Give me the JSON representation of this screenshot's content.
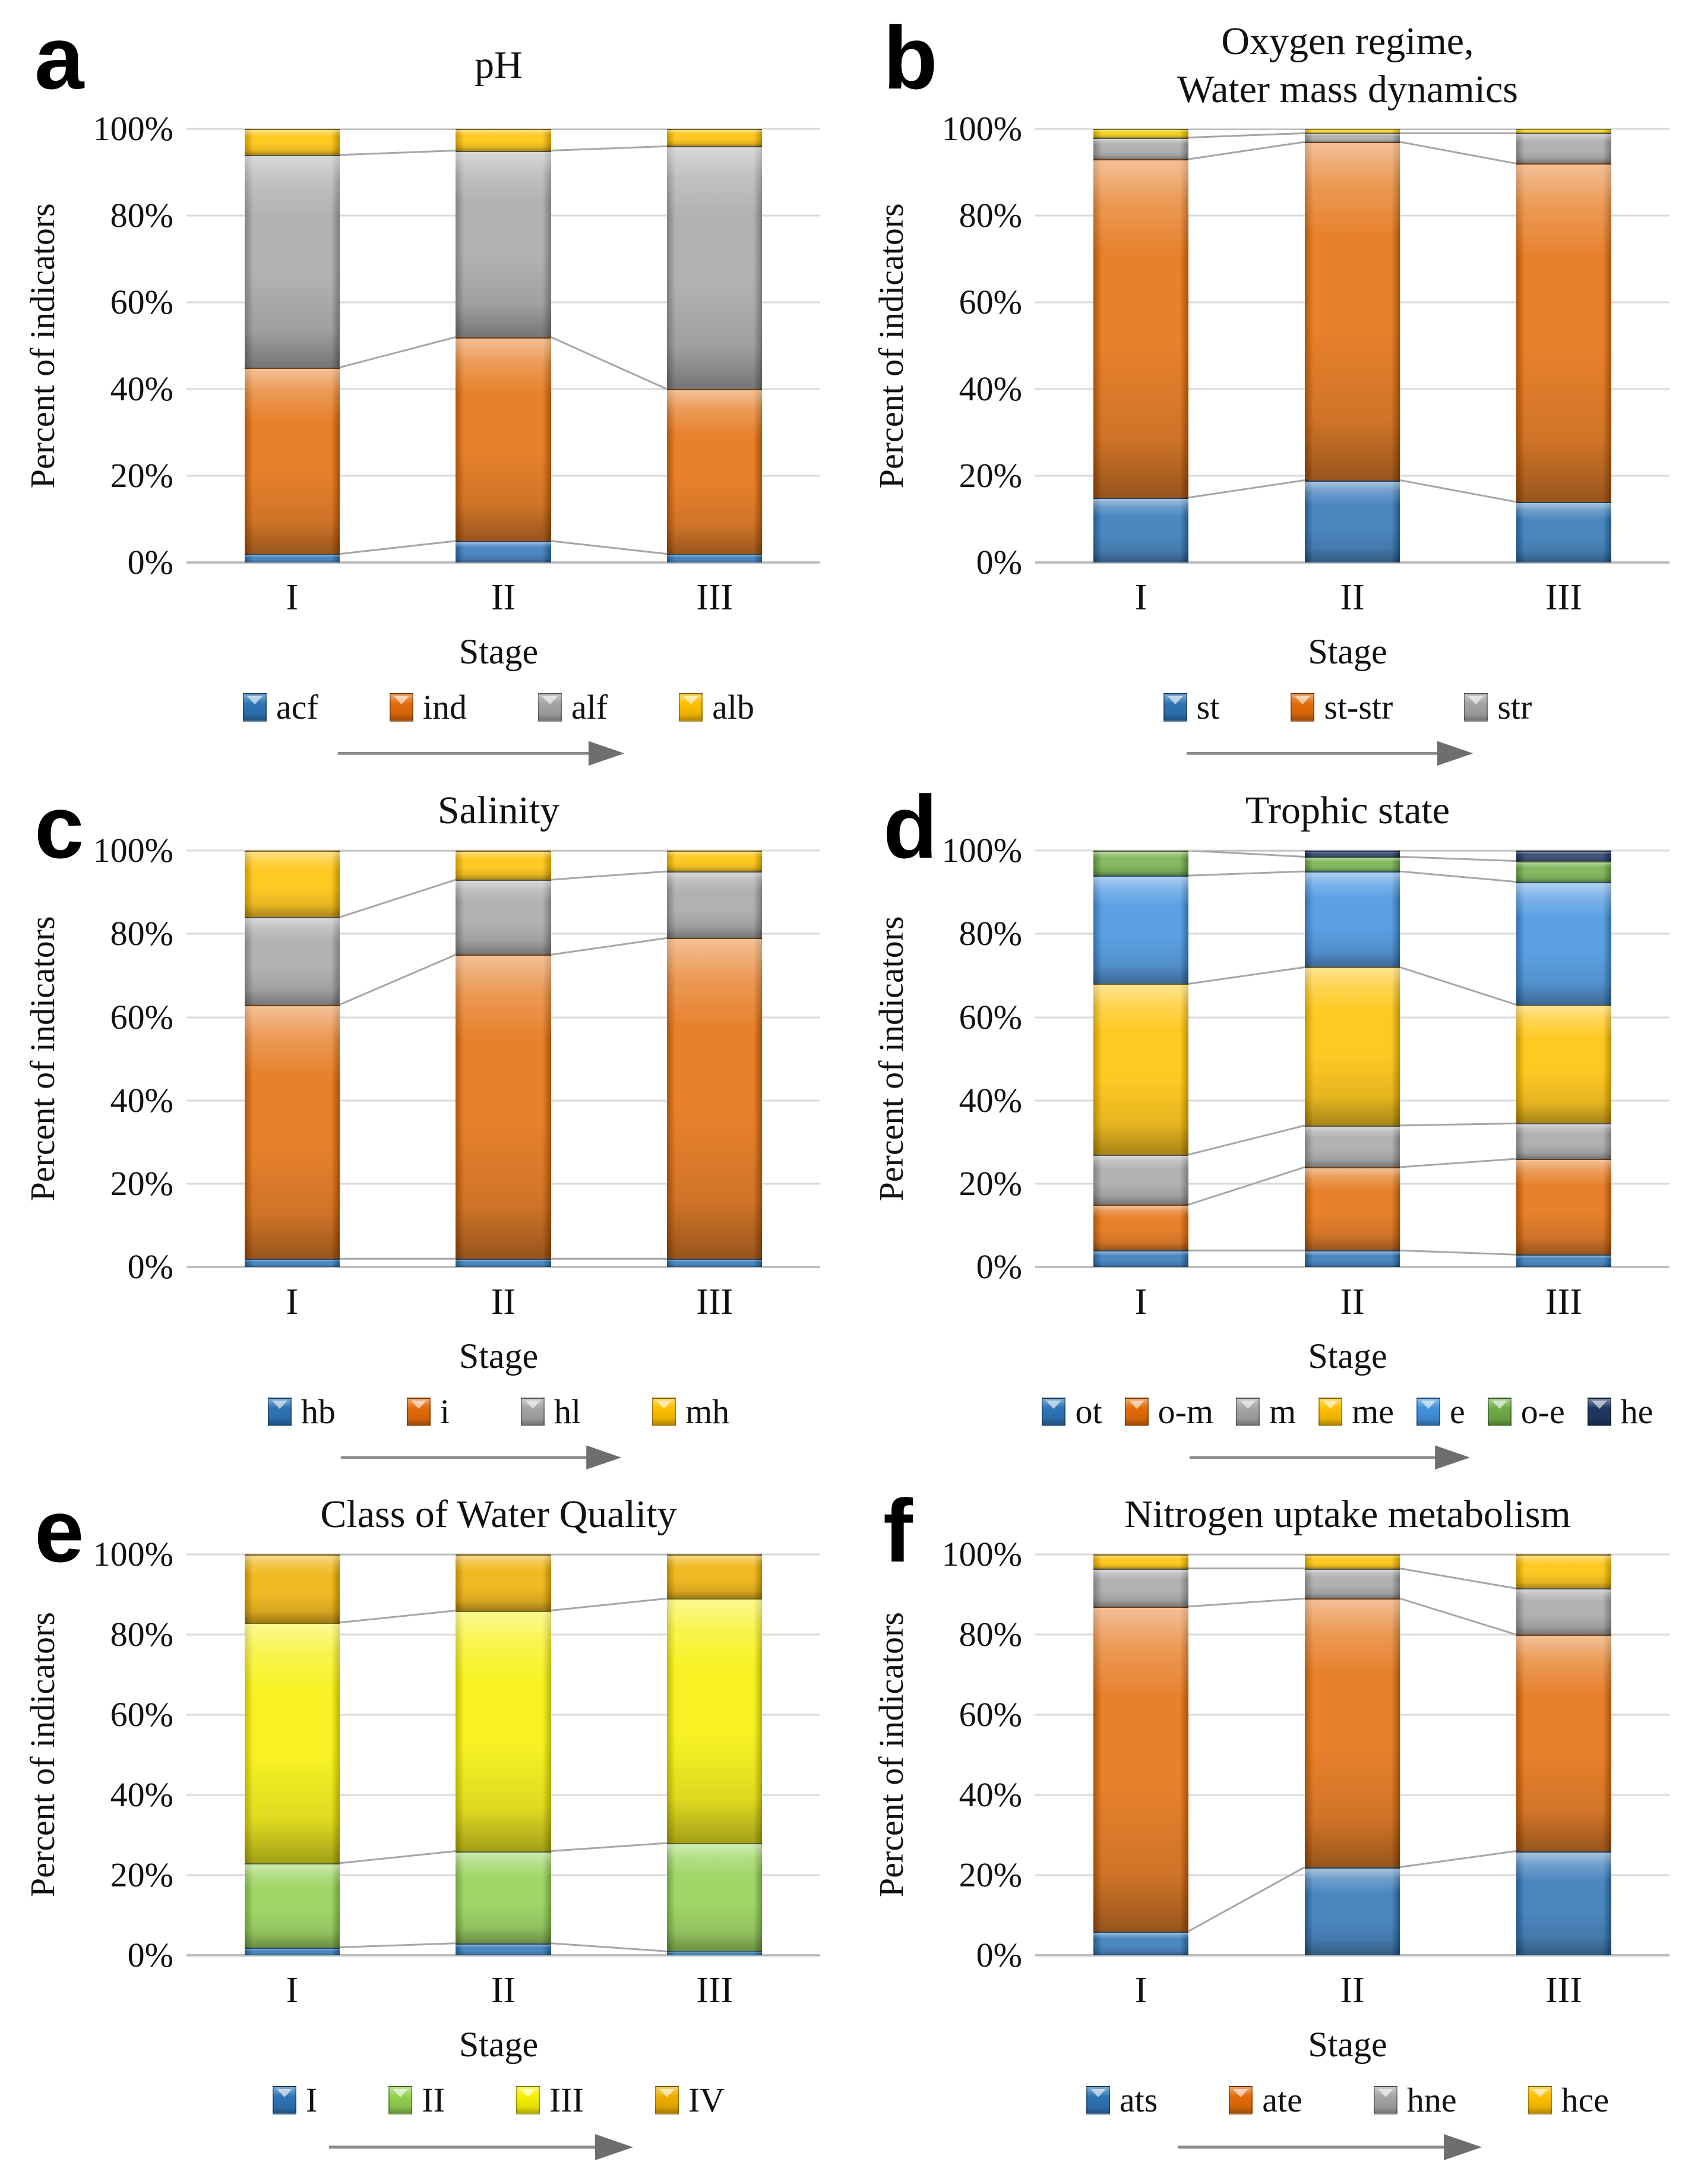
{
  "chart_data": [
    {
      "type": "bar",
      "stacked": true,
      "panel_letter": "a",
      "title": "pH",
      "title_lines": [
        "pH"
      ],
      "xlabel": "Stage",
      "ylabel": "Percent of indicators",
      "categories": [
        "I",
        "II",
        "III"
      ],
      "y_tick_labels": [
        "0%",
        "20%",
        "40%",
        "60%",
        "80%",
        "100%"
      ],
      "ylim": [
        0,
        100
      ],
      "grid": true,
      "legend_position": "bottom",
      "series": [
        {
          "name": "acf",
          "color": "#2E75B6",
          "values": [
            2,
            5,
            2
          ]
        },
        {
          "name": "ind",
          "color": "#E36C09",
          "values": [
            43,
            47,
            38
          ]
        },
        {
          "name": "alf",
          "color": "#A5A5A5",
          "values": [
            49,
            43,
            56
          ]
        },
        {
          "name": "alb",
          "color": "#FFC000",
          "values": [
            6,
            5,
            4
          ]
        }
      ]
    },
    {
      "type": "bar",
      "stacked": true,
      "panel_letter": "b",
      "title": "Oxygen regime, Water mass dynamics",
      "title_lines": [
        "Oxygen regime,",
        "Water mass dynamics"
      ],
      "xlabel": "Stage",
      "ylabel": "Percent of indicators",
      "categories": [
        "I",
        "II",
        "III"
      ],
      "y_tick_labels": [
        "0%",
        "20%",
        "40%",
        "60%",
        "80%",
        "100%"
      ],
      "ylim": [
        0,
        100
      ],
      "grid": true,
      "legend_position": "bottom",
      "series": [
        {
          "name": "st",
          "color": "#2E75B6",
          "values": [
            15,
            19,
            14
          ]
        },
        {
          "name": "st-str",
          "color": "#E36C09",
          "values": [
            78,
            78,
            78
          ]
        },
        {
          "name": "str",
          "color": "#A5A5A5",
          "values": [
            5,
            2,
            7
          ]
        },
        {
          "name": "",
          "color": "#EDC900",
          "values": [
            2,
            1,
            1
          ],
          "in_legend": false
        }
      ]
    },
    {
      "type": "bar",
      "stacked": true,
      "panel_letter": "c",
      "title": "Salinity",
      "title_lines": [
        "Salinity"
      ],
      "xlabel": "Stage",
      "ylabel": "Percent of indicators",
      "categories": [
        "I",
        "II",
        "III"
      ],
      "y_tick_labels": [
        "0%",
        "20%",
        "40%",
        "60%",
        "80%",
        "100%"
      ],
      "ylim": [
        0,
        100
      ],
      "grid": true,
      "legend_position": "bottom",
      "series": [
        {
          "name": "hb",
          "color": "#2E75B6",
          "values": [
            2,
            2,
            2
          ]
        },
        {
          "name": "i",
          "color": "#E36C09",
          "values": [
            61,
            73,
            77
          ]
        },
        {
          "name": "hl",
          "color": "#A5A5A5",
          "values": [
            21,
            18,
            16
          ]
        },
        {
          "name": "mh",
          "color": "#FFC000",
          "values": [
            16,
            7,
            5
          ]
        }
      ]
    },
    {
      "type": "bar",
      "stacked": true,
      "panel_letter": "d",
      "title": "Trophic state",
      "title_lines": [
        "Trophic state"
      ],
      "xlabel": "Stage",
      "ylabel": "Percent of indicators",
      "categories": [
        "I",
        "II",
        "III"
      ],
      "y_tick_labels": [
        "0%",
        "20%",
        "40%",
        "60%",
        "80%",
        "100%"
      ],
      "ylim": [
        0,
        100
      ],
      "grid": true,
      "legend_position": "bottom",
      "series": [
        {
          "name": "ot",
          "color": "#2E75B6",
          "values": [
            4,
            4,
            3
          ]
        },
        {
          "name": "o-m",
          "color": "#E36C09",
          "values": [
            11,
            20,
            23
          ]
        },
        {
          "name": "m",
          "color": "#A5A5A5",
          "values": [
            12,
            10,
            8.5
          ]
        },
        {
          "name": "me",
          "color": "#FFC000",
          "values": [
            41,
            38,
            28.5
          ]
        },
        {
          "name": "e",
          "color": "#4191DF",
          "values": [
            26,
            23,
            29.5
          ]
        },
        {
          "name": "o-e",
          "color": "#70AD47",
          "values": [
            6,
            3.5,
            5
          ]
        },
        {
          "name": "he",
          "color": "#1F3864",
          "values": [
            0,
            1.5,
            2.5
          ]
        }
      ]
    },
    {
      "type": "bar",
      "stacked": true,
      "panel_letter": "e",
      "title": "Class of Water Quality",
      "title_lines": [
        "Class of Water Quality"
      ],
      "xlabel": "Stage",
      "ylabel": "Percent of indicators",
      "categories": [
        "I",
        "II",
        "III"
      ],
      "y_tick_labels": [
        "0%",
        "20%",
        "40%",
        "60%",
        "80%",
        "100%"
      ],
      "ylim": [
        0,
        100
      ],
      "grid": true,
      "legend_position": "bottom",
      "series": [
        {
          "name": "I",
          "color": "#2E75B6",
          "values": [
            2,
            3,
            1
          ]
        },
        {
          "name": "II",
          "color": "#92D050",
          "values": [
            21,
            23,
            27
          ]
        },
        {
          "name": "III",
          "color": "#F7F000",
          "values": [
            60,
            60,
            61
          ]
        },
        {
          "name": "IV",
          "color": "#EFAF00",
          "values": [
            17,
            14,
            11
          ]
        }
      ]
    },
    {
      "type": "bar",
      "stacked": true,
      "panel_letter": "f",
      "title": "Nitrogen uptake metabolism",
      "title_lines": [
        "Nitrogen uptake metabolism"
      ],
      "xlabel": "Stage",
      "ylabel": "Percent of indicators",
      "categories": [
        "I",
        "II",
        "III"
      ],
      "y_tick_labels": [
        "0%",
        "20%",
        "40%",
        "60%",
        "80%",
        "100%"
      ],
      "ylim": [
        0,
        100
      ],
      "grid": true,
      "legend_position": "bottom",
      "series": [
        {
          "name": "ats",
          "color": "#2E75B6",
          "values": [
            6,
            22,
            26
          ]
        },
        {
          "name": "ate",
          "color": "#E36C09",
          "values": [
            81,
            67,
            54
          ]
        },
        {
          "name": "hne",
          "color": "#A5A5A5",
          "values": [
            9.5,
            7.5,
            11.5
          ]
        },
        {
          "name": "hce",
          "color": "#FFC000",
          "values": [
            3.5,
            3.5,
            8.5
          ]
        }
      ]
    }
  ]
}
